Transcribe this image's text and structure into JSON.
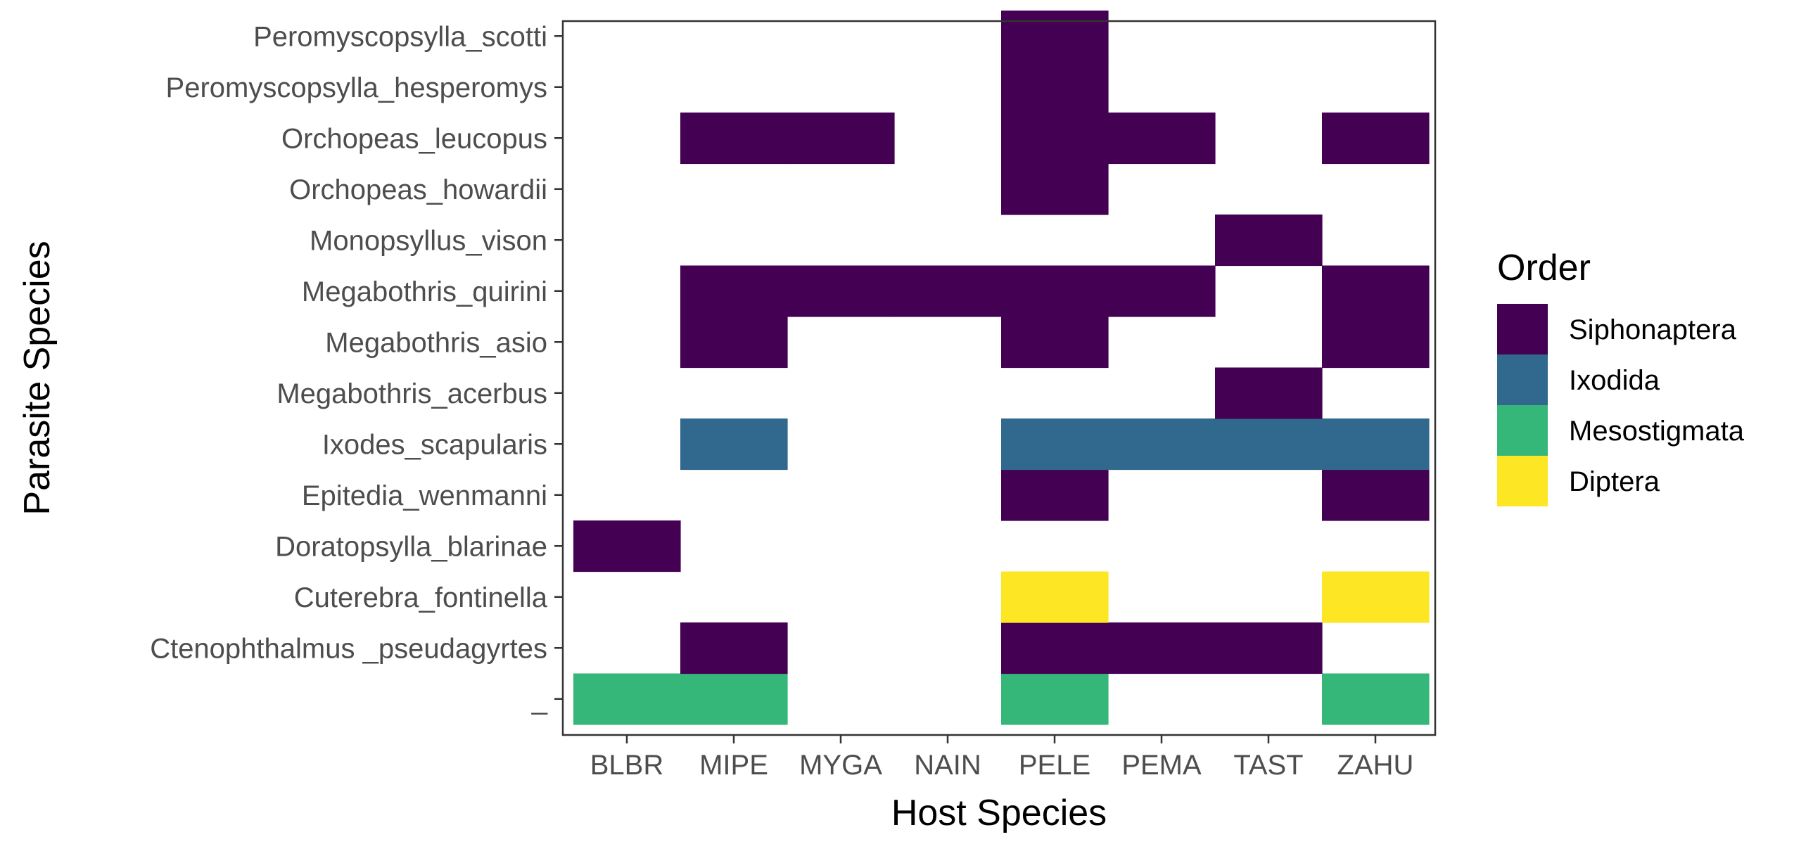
{
  "chart_data": {
    "type": "heatmap",
    "title": "",
    "xlabel": "Host Species",
    "ylabel": "Parasite Species",
    "x_categories": [
      "BLBR",
      "MIPE",
      "MYGA",
      "NAIN",
      "PELE",
      "PEMA",
      "TAST",
      "ZAHU"
    ],
    "y_categories": [
      "_",
      "Ctenophthalmus _pseudagyrtes",
      "Cuterebra_fontinella",
      "Doratopsylla_blarinae",
      "Epitedia_wenmanni",
      "Ixodes_scapularis",
      "Megabothris_acerbus",
      "Megabothris_asio",
      "Megabothris_quirini",
      "Monopsyllus_vison",
      "Orchopeas_howardii",
      "Orchopeas_leucopus",
      "Peromyscopsylla_hesperomys",
      "Peromyscopsylla_scotti"
    ],
    "legend": {
      "title": "Order",
      "position": "right",
      "entries": [
        {
          "name": "Siphonaptera",
          "color": "#440154"
        },
        {
          "name": "Ixodida",
          "color": "#31688E"
        },
        {
          "name": "Mesostigmata",
          "color": "#35B779"
        },
        {
          "name": "Diptera",
          "color": "#FDE725"
        }
      ]
    },
    "cells": [
      {
        "x": "BLBR",
        "y": "_",
        "order": "Mesostigmata"
      },
      {
        "x": "MIPE",
        "y": "_",
        "order": "Mesostigmata"
      },
      {
        "x": "PELE",
        "y": "_",
        "order": "Mesostigmata"
      },
      {
        "x": "ZAHU",
        "y": "_",
        "order": "Mesostigmata"
      },
      {
        "x": "MIPE",
        "y": "Ctenophthalmus _pseudagyrtes",
        "order": "Siphonaptera"
      },
      {
        "x": "PELE",
        "y": "Ctenophthalmus _pseudagyrtes",
        "order": "Siphonaptera"
      },
      {
        "x": "PEMA",
        "y": "Ctenophthalmus _pseudagyrtes",
        "order": "Siphonaptera"
      },
      {
        "x": "TAST",
        "y": "Ctenophthalmus _pseudagyrtes",
        "order": "Siphonaptera"
      },
      {
        "x": "PELE",
        "y": "Cuterebra_fontinella",
        "order": "Diptera"
      },
      {
        "x": "ZAHU",
        "y": "Cuterebra_fontinella",
        "order": "Diptera"
      },
      {
        "x": "BLBR",
        "y": "Doratopsylla_blarinae",
        "order": "Siphonaptera"
      },
      {
        "x": "PELE",
        "y": "Epitedia_wenmanni",
        "order": "Siphonaptera"
      },
      {
        "x": "ZAHU",
        "y": "Epitedia_wenmanni",
        "order": "Siphonaptera"
      },
      {
        "x": "MIPE",
        "y": "Ixodes_scapularis",
        "order": "Ixodida"
      },
      {
        "x": "PELE",
        "y": "Ixodes_scapularis",
        "order": "Ixodida"
      },
      {
        "x": "PEMA",
        "y": "Ixodes_scapularis",
        "order": "Ixodida"
      },
      {
        "x": "TAST",
        "y": "Ixodes_scapularis",
        "order": "Ixodida"
      },
      {
        "x": "ZAHU",
        "y": "Ixodes_scapularis",
        "order": "Ixodida"
      },
      {
        "x": "TAST",
        "y": "Megabothris_acerbus",
        "order": "Siphonaptera"
      },
      {
        "x": "MIPE",
        "y": "Megabothris_asio",
        "order": "Siphonaptera"
      },
      {
        "x": "PELE",
        "y": "Megabothris_asio",
        "order": "Siphonaptera"
      },
      {
        "x": "ZAHU",
        "y": "Megabothris_asio",
        "order": "Siphonaptera"
      },
      {
        "x": "MIPE",
        "y": "Megabothris_quirini",
        "order": "Siphonaptera"
      },
      {
        "x": "MYGA",
        "y": "Megabothris_quirini",
        "order": "Siphonaptera"
      },
      {
        "x": "NAIN",
        "y": "Megabothris_quirini",
        "order": "Siphonaptera"
      },
      {
        "x": "PELE",
        "y": "Megabothris_quirini",
        "order": "Siphonaptera"
      },
      {
        "x": "PEMA",
        "y": "Megabothris_quirini",
        "order": "Siphonaptera"
      },
      {
        "x": "ZAHU",
        "y": "Megabothris_quirini",
        "order": "Siphonaptera"
      },
      {
        "x": "TAST",
        "y": "Monopsyllus_vison",
        "order": "Siphonaptera"
      },
      {
        "x": "PELE",
        "y": "Orchopeas_howardii",
        "order": "Siphonaptera"
      },
      {
        "x": "MIPE",
        "y": "Orchopeas_leucopus",
        "order": "Siphonaptera"
      },
      {
        "x": "MYGA",
        "y": "Orchopeas_leucopus",
        "order": "Siphonaptera"
      },
      {
        "x": "PELE",
        "y": "Orchopeas_leucopus",
        "order": "Siphonaptera"
      },
      {
        "x": "PEMA",
        "y": "Orchopeas_leucopus",
        "order": "Siphonaptera"
      },
      {
        "x": "ZAHU",
        "y": "Orchopeas_leucopus",
        "order": "Siphonaptera"
      },
      {
        "x": "PELE",
        "y": "Peromyscopsylla_hesperomys",
        "order": "Siphonaptera"
      },
      {
        "x": "PELE",
        "y": "Peromyscopsylla_scotti",
        "order": "Siphonaptera"
      }
    ],
    "grid": false
  }
}
